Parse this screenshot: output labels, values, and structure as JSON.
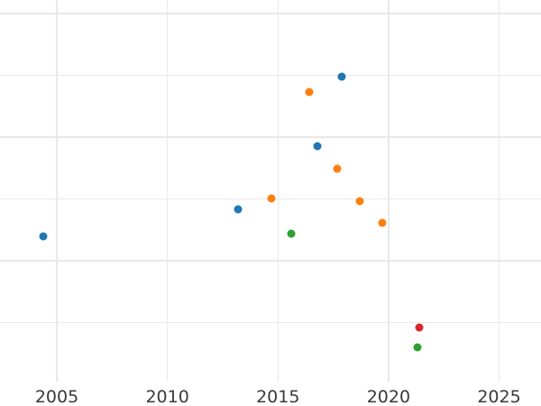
{
  "chart_data": {
    "type": "scatter",
    "title": "",
    "xlabel": "",
    "ylabel": "",
    "grid": true,
    "legend": "none",
    "x_axis": {
      "tick_labels": [
        "2005",
        "2010",
        "2015",
        "2020",
        "2025"
      ],
      "tick_values": [
        2005,
        2010,
        2015,
        2020,
        2025
      ],
      "approx_range": [
        2002.4,
        2026.9
      ]
    },
    "y_axis": {
      "tick_labels": [],
      "gridline_units": [
        1,
        2,
        3,
        4,
        5,
        6
      ]
    },
    "series": [
      {
        "name": "blue",
        "color": "#1f77b4",
        "points": [
          {
            "x": 2004.4,
            "y": 2.39
          },
          {
            "x": 2013.2,
            "y": 2.83
          },
          {
            "x": 2016.8,
            "y": 3.85
          },
          {
            "x": 2017.9,
            "y": 4.98
          }
        ]
      },
      {
        "name": "orange",
        "color": "#ff7f0e",
        "points": [
          {
            "x": 2014.7,
            "y": 3.01
          },
          {
            "x": 2016.4,
            "y": 4.73
          },
          {
            "x": 2017.7,
            "y": 3.49
          },
          {
            "x": 2018.7,
            "y": 2.96
          },
          {
            "x": 2019.7,
            "y": 2.61
          }
        ]
      },
      {
        "name": "green",
        "color": "#2ca02c",
        "points": [
          {
            "x": 2015.6,
            "y": 2.44
          },
          {
            "x": 2021.3,
            "y": 0.6
          }
        ]
      },
      {
        "name": "red",
        "color": "#d62728",
        "points": [
          {
            "x": 2021.4,
            "y": 0.92
          }
        ]
      }
    ]
  },
  "style": {
    "background": "#ffffff",
    "grid_color": "#e9e9e9",
    "tick_label_color": "#3a3a3a"
  }
}
